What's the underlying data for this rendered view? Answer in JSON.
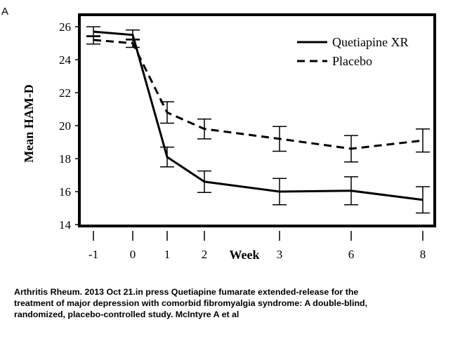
{
  "panel_label": "A",
  "citation": {
    "lines": [
      "Arthritis Rheum. 2013 Oct 21.in press Quetiapine fumarate extended-release for the",
      "treatment of major depression with comorbid fibromyalgia syndrome: A double-blind,",
      "randomized, placebo-controlled study. McIntyre A et al"
    ]
  },
  "chart_data": {
    "type": "line",
    "title": "",
    "xlabel": "Week",
    "ylabel": "Mean HAM-D",
    "x": [
      "-1",
      "0",
      "1",
      "2",
      "3",
      "6",
      "8"
    ],
    "ylim": [
      14,
      26.6
    ],
    "yticks": [
      "14",
      "16",
      "18",
      "20",
      "22",
      "24",
      "26"
    ],
    "grid": false,
    "legend_position": "top-right",
    "series": [
      {
        "name": "Quetiapine XR",
        "style": "solid",
        "color": "#000000",
        "values": [
          25.7,
          25.5,
          18.1,
          16.6,
          16.0,
          16.05,
          15.5
        ],
        "error": [
          0.3,
          0.3,
          0.6,
          0.65,
          0.8,
          0.85,
          0.8
        ]
      },
      {
        "name": "Placebo",
        "style": "dashed",
        "color": "#000000",
        "values": [
          25.2,
          25.0,
          20.8,
          19.8,
          19.2,
          18.6,
          19.1
        ],
        "error": [
          0.25,
          0.25,
          0.65,
          0.6,
          0.75,
          0.8,
          0.7
        ]
      }
    ]
  }
}
